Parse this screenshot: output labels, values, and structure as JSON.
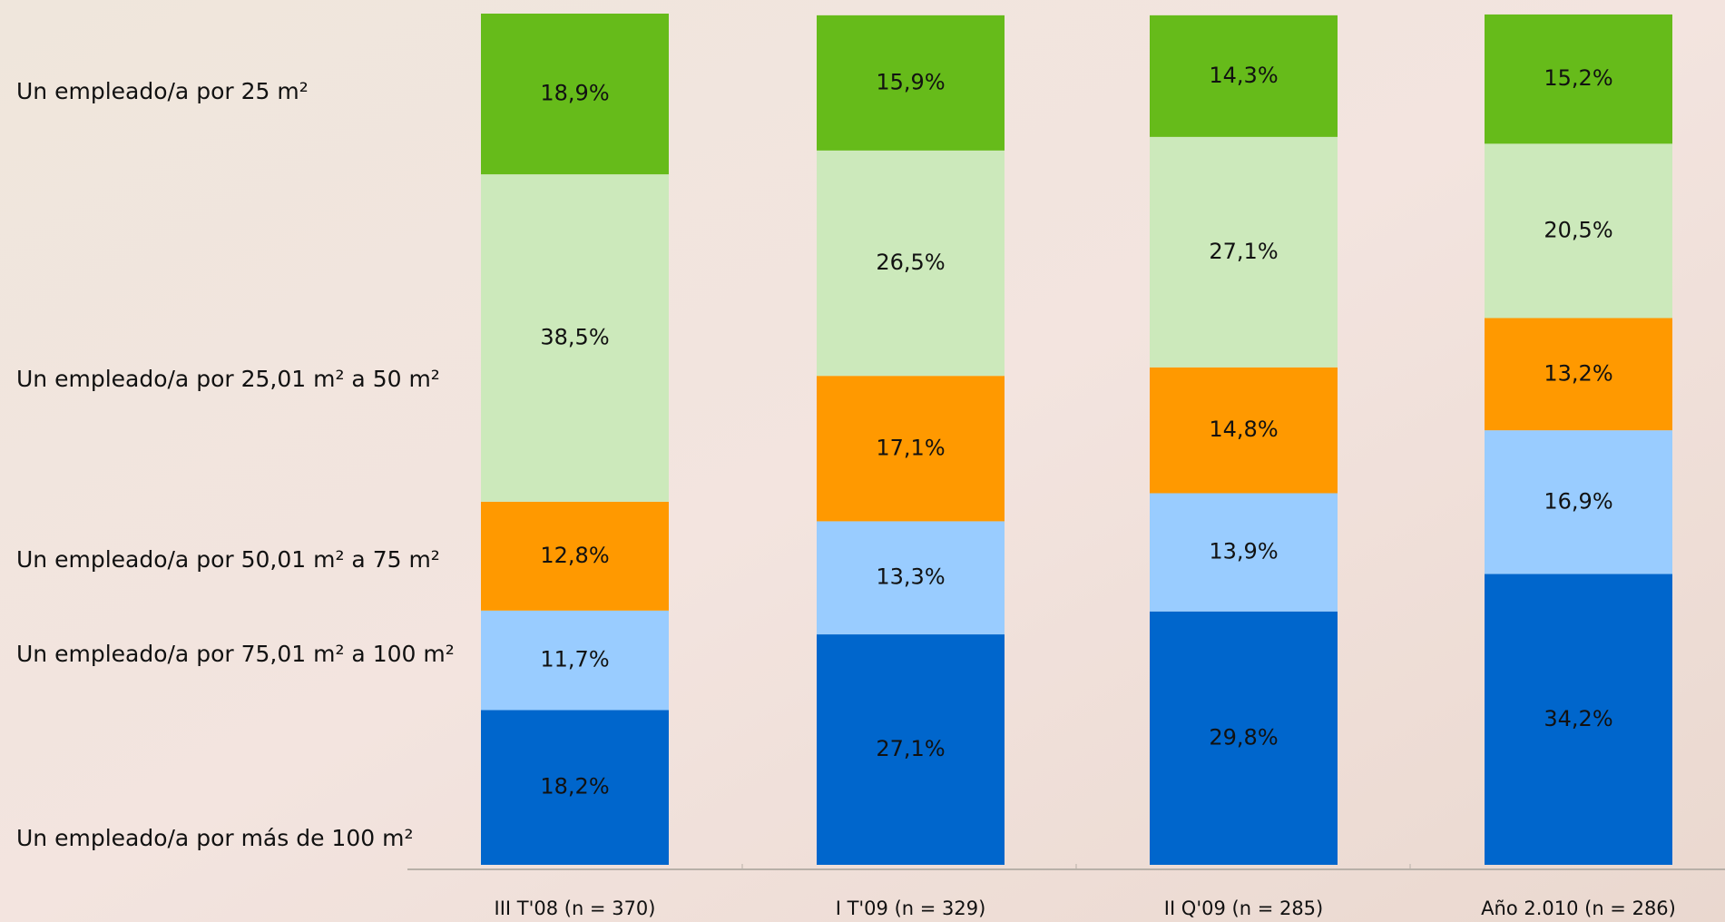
{
  "chart_data": {
    "type": "stacked-bar",
    "categories": [
      "III T'08 (n = 370)",
      "I T'09 (n = 329)",
      "II Q'09 (n = 285)",
      "Año 2.010 (n = 286)"
    ],
    "series": [
      {
        "name": "Un empleado/a por más de 100 m²",
        "color": "#0066cc",
        "values": [
          18.2,
          27.1,
          29.8,
          34.2
        ],
        "value_labels": [
          "18,2%",
          "27,1%",
          "29,8%",
          "34,2%"
        ]
      },
      {
        "name": "Un empleado/a por 75,01 m² a 100 m²",
        "color": "#99ccff",
        "values": [
          11.7,
          13.3,
          13.9,
          16.9
        ],
        "value_labels": [
          "11,7%",
          "13,3%",
          "13,9%",
          "16,9%"
        ]
      },
      {
        "name": "Un empleado/a por 50,01 m² a 75 m²",
        "color": "#ff9900",
        "values": [
          12.8,
          17.1,
          14.8,
          13.2
        ],
        "value_labels": [
          "12,8%",
          "17,1%",
          "14,8%",
          "13,2%"
        ]
      },
      {
        "name": "Un empleado/a por 25,01 m² a 50 m²",
        "color": "#cce9bb",
        "values": [
          38.5,
          26.5,
          27.1,
          20.5
        ],
        "value_labels": [
          "38,5%",
          "26,5%",
          "27,1%",
          "20,5%"
        ]
      },
      {
        "name": "Un empleado/a por 25 m²",
        "color": "#66bb1a",
        "values": [
          18.9,
          15.9,
          14.3,
          15.2
        ],
        "value_labels": [
          "18,9%",
          "15,9%",
          "14,3%",
          "15,2%"
        ]
      }
    ]
  }
}
